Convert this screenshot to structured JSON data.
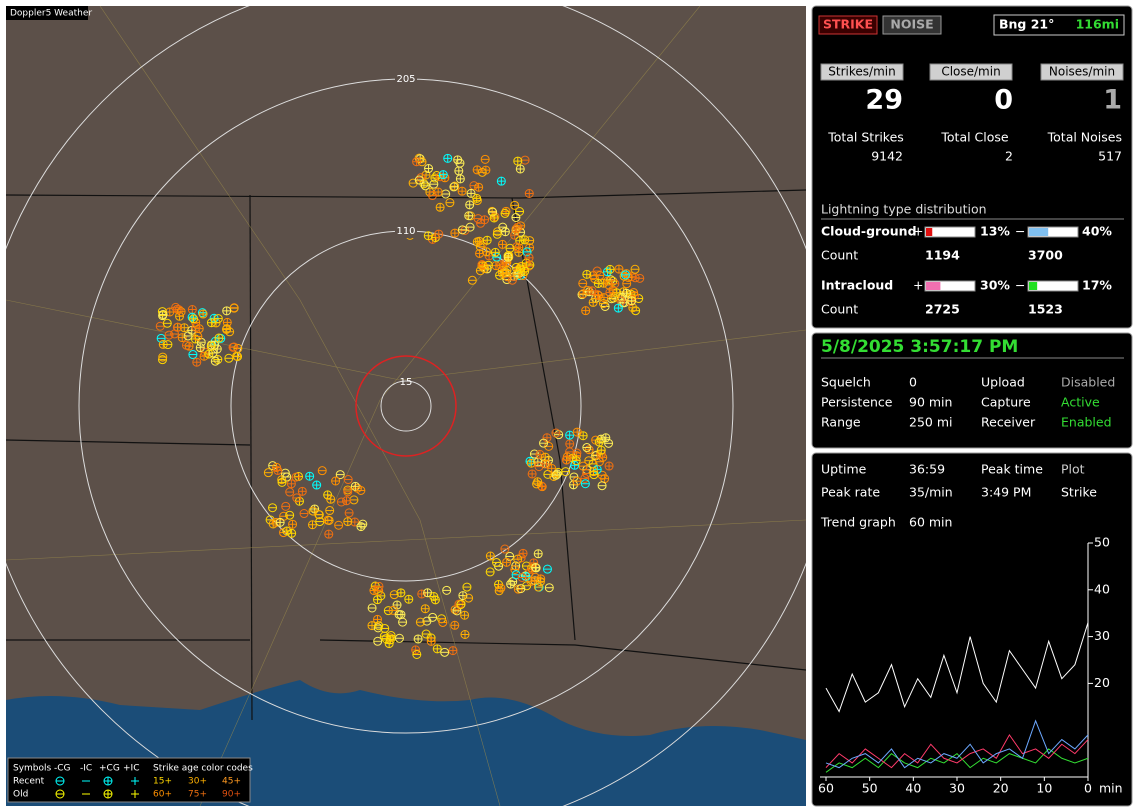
{
  "map": {
    "title": "Doppler5 Weather",
    "rings": [
      "205",
      "110",
      "15"
    ],
    "legend": {
      "symbols": "Symbols",
      "columns": [
        "-CG",
        "-IC",
        "+CG",
        "+IC"
      ],
      "age_title": "Strike age color codes",
      "rows": [
        "Recent",
        "Old"
      ],
      "ages": [
        [
          "15+",
          "30+",
          "45+"
        ],
        [
          "60+",
          "75+",
          "90+"
        ]
      ]
    }
  },
  "header": {
    "strike": "STRIKE",
    "noise": "NOISE",
    "bearing": "Bng 21°",
    "distance": "116mi"
  },
  "rates": [
    {
      "label": "Strikes/min",
      "value": "29",
      "total_label": "Total Strikes",
      "total": "9142"
    },
    {
      "label": "Close/min",
      "value": "0",
      "total_label": "Total Close",
      "total": "2"
    },
    {
      "label": "Noises/min",
      "value": "1",
      "total_label": "Total Noises",
      "total": "517"
    }
  ],
  "distribution": {
    "title": "Lightning type distribution",
    "rows": [
      {
        "label": "Cloud-ground",
        "pos": "+",
        "pos_pct": {
          "value": 13,
          "label": "13%"
        },
        "neg": "−",
        "neg_pct": {
          "value": 40,
          "label": "40%"
        },
        "count_label": "Count",
        "pos_count": "1194",
        "neg_count": "3700"
      },
      {
        "label": "Intracloud",
        "pos": "+",
        "pos_pct": {
          "value": 30,
          "label": "30%"
        },
        "neg": "−",
        "neg_pct": {
          "value": 17,
          "label": "17%"
        },
        "count_label": "Count",
        "pos_count": "2725",
        "neg_count": "1523"
      }
    ]
  },
  "status": {
    "datetime": "5/8/2025 3:57:17 PM",
    "rows": [
      [
        "Squelch",
        "0",
        "Upload",
        "Disabled"
      ],
      [
        "Persistence",
        "90 min",
        "Capture",
        "Active"
      ],
      [
        "Range",
        "250 mi",
        "Receiver",
        "Enabled"
      ]
    ]
  },
  "stats": {
    "rows": [
      [
        "Uptime",
        "36:59",
        "Peak time",
        "Plot"
      ],
      [
        "Peak rate",
        "35/min",
        "3:49 PM",
        "Strike"
      ]
    ],
    "trend_label": "Trend graph",
    "trend_value": "60 min"
  },
  "chart_data": {
    "type": "line",
    "x_label": "min",
    "x": [
      60,
      57,
      54,
      51,
      48,
      45,
      42,
      39,
      36,
      33,
      30,
      27,
      24,
      21,
      18,
      15,
      12,
      9,
      6,
      3,
      0
    ],
    "xlim": [
      60,
      0
    ],
    "xticks": [
      60,
      50,
      40,
      30,
      20,
      10,
      0
    ],
    "ylim": [
      0,
      50
    ],
    "yticks": [
      20,
      30,
      40,
      50
    ],
    "series": [
      {
        "color": "#ffffff",
        "values": [
          19,
          14,
          22,
          16,
          18,
          24,
          15,
          21,
          17,
          26,
          18,
          30,
          20,
          16,
          27,
          23,
          19,
          29,
          21,
          24,
          33
        ]
      },
      {
        "color": "#6ca8ff",
        "values": [
          3,
          2,
          4,
          5,
          3,
          6,
          2,
          4,
          3,
          5,
          4,
          7,
          3,
          5,
          6,
          4,
          12,
          5,
          8,
          6,
          9
        ]
      },
      {
        "color": "#ff3b6b",
        "values": [
          2,
          5,
          3,
          6,
          4,
          2,
          5,
          3,
          7,
          4,
          3,
          5,
          6,
          4,
          9,
          5,
          6,
          4,
          7,
          5,
          8
        ]
      },
      {
        "color": "#33dd33",
        "values": [
          1,
          3,
          2,
          4,
          2,
          5,
          3,
          2,
          4,
          3,
          5,
          2,
          4,
          3,
          5,
          4,
          3,
          6,
          4,
          3,
          4
        ]
      }
    ]
  }
}
